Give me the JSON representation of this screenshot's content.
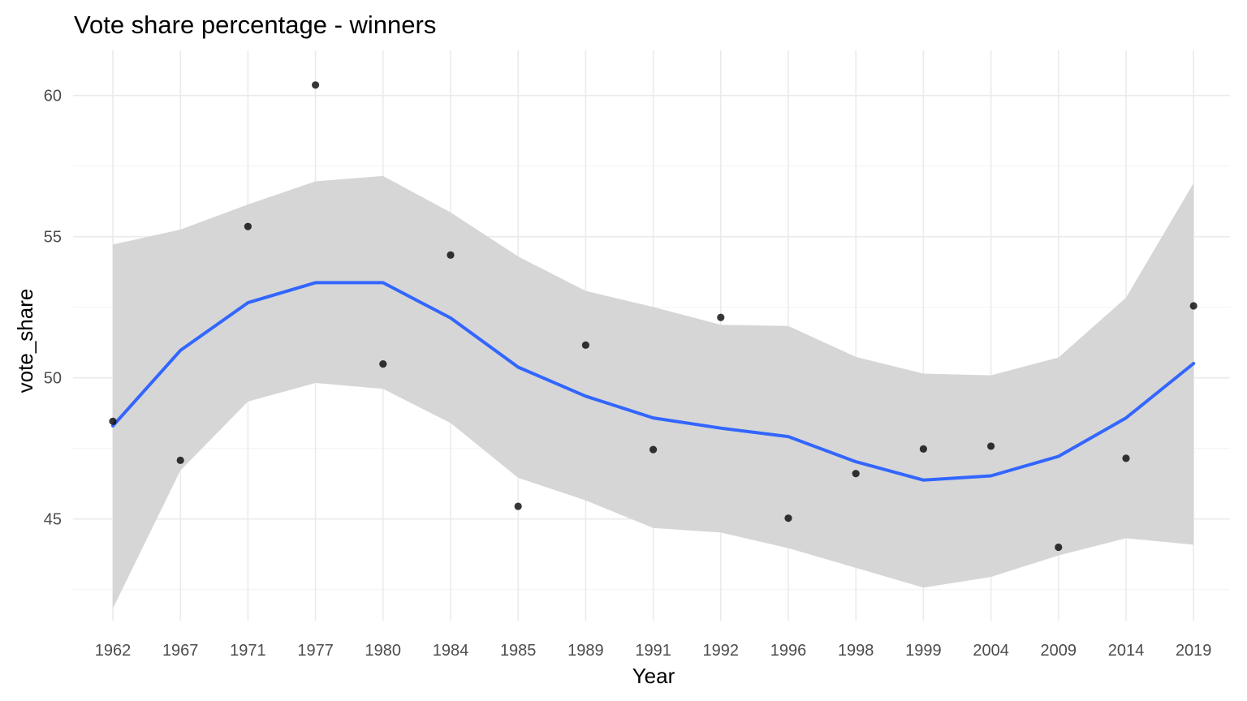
{
  "chart_data": {
    "type": "scatter",
    "title": "Vote share percentage - winners",
    "xlabel": "Year",
    "ylabel": "vote_share",
    "categories": [
      "1962",
      "1967",
      "1971",
      "1977",
      "1980",
      "1984",
      "1985",
      "1989",
      "1991",
      "1992",
      "1996",
      "1998",
      "1999",
      "2004",
      "2009",
      "2014",
      "2019"
    ],
    "ylim": [
      41.4,
      61.6
    ],
    "yticks": [
      45,
      50,
      55,
      60
    ],
    "grid": true,
    "points": [
      48.46,
      47.08,
      55.36,
      60.37,
      50.49,
      54.35,
      45.45,
      51.16,
      47.46,
      52.14,
      45.03,
      46.61,
      47.48,
      47.58,
      44.0,
      47.15,
      52.55
    ],
    "smooth": {
      "name": "loess",
      "color": "#3366ff",
      "fit": [
        48.3,
        50.97,
        52.66,
        53.37,
        53.37,
        52.12,
        50.38,
        49.35,
        48.58,
        48.22,
        47.92,
        47.03,
        46.38,
        46.53,
        47.22,
        48.58,
        50.51
      ],
      "ci_upper": [
        54.72,
        55.25,
        56.14,
        56.96,
        57.15,
        55.86,
        54.3,
        53.08,
        52.51,
        51.88,
        51.84,
        50.74,
        50.15,
        50.09,
        50.72,
        52.84,
        56.9
      ],
      "ci_lower": [
        41.83,
        46.72,
        49.16,
        49.82,
        49.61,
        48.4,
        46.46,
        45.66,
        44.68,
        44.52,
        43.97,
        43.27,
        42.57,
        42.95,
        43.71,
        44.32,
        44.09
      ],
      "ci_color": "#d6d6d6"
    },
    "point_color": "#000000"
  }
}
